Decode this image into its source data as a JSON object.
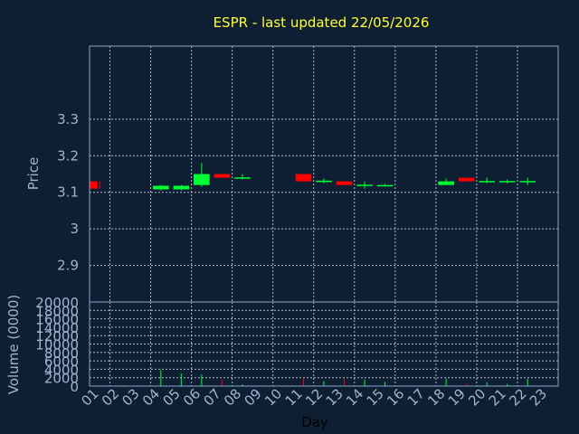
{
  "chart_data": {
    "type": "candlestick",
    "title": "ESPR - last updated 22/05/2026",
    "xlabel": "Day",
    "price_ylabel": "Price",
    "volume_ylabel": "Volume (0000)",
    "x_ticks": [
      "01",
      "02",
      "03",
      "04",
      "05",
      "06",
      "07",
      "08",
      "09",
      "10",
      "11",
      "12",
      "13",
      "14",
      "15",
      "16",
      "17",
      "18",
      "19",
      "20",
      "21",
      "22",
      "23"
    ],
    "price_ylim": [
      2.8,
      3.5
    ],
    "price_ticks": [
      {
        "value": 2.9,
        "label": "2.9"
      },
      {
        "value": 3.0,
        "label": "3"
      },
      {
        "value": 3.1,
        "label": "3.1"
      },
      {
        "value": 3.2,
        "label": "3.2"
      },
      {
        "value": 3.3,
        "label": "3.3"
      }
    ],
    "volume_ylim": [
      0,
      20000
    ],
    "volume_ticks": [
      {
        "value": 0,
        "label": "0"
      },
      {
        "value": 2000,
        "label": "2000"
      },
      {
        "value": 4000,
        "label": "4000"
      },
      {
        "value": 6000,
        "label": "6000"
      },
      {
        "value": 8000,
        "label": "8000"
      },
      {
        "value": 10000,
        "label": "10000"
      },
      {
        "value": 12000,
        "label": "12000"
      },
      {
        "value": 14000,
        "label": "14000"
      },
      {
        "value": 16000,
        "label": "16000"
      },
      {
        "value": 18000,
        "label": "18000"
      },
      {
        "value": 20000,
        "label": "20000"
      }
    ],
    "grid": true,
    "colors": {
      "up": "#00ff33",
      "down": "#ff0000",
      "background": "#0f1f33"
    },
    "candles": [
      {
        "day": 1,
        "open": 3.13,
        "close": 3.11,
        "high": 3.13,
        "low": 3.11
      },
      {
        "day": 4,
        "open": 3.108,
        "close": 3.118,
        "high": 3.12,
        "low": 3.105
      },
      {
        "day": 5,
        "open": 3.108,
        "close": 3.118,
        "high": 3.12,
        "low": 3.105
      },
      {
        "day": 6,
        "open": 3.12,
        "close": 3.15,
        "high": 3.18,
        "low": 3.115
      },
      {
        "day": 7,
        "open": 3.15,
        "close": 3.14,
        "high": 3.15,
        "low": 3.14
      },
      {
        "day": 8,
        "open": 3.138,
        "close": 3.141,
        "high": 3.15,
        "low": 3.135
      },
      {
        "day": 11,
        "open": 3.15,
        "close": 3.13,
        "high": 3.15,
        "low": 3.13
      },
      {
        "day": 12,
        "open": 3.128,
        "close": 3.132,
        "high": 3.138,
        "low": 3.125
      },
      {
        "day": 13,
        "open": 3.13,
        "close": 3.12,
        "high": 3.13,
        "low": 3.12
      },
      {
        "day": 14,
        "open": 3.118,
        "close": 3.121,
        "high": 3.13,
        "low": 3.11
      },
      {
        "day": 15,
        "open": 3.118,
        "close": 3.12,
        "high": 3.123,
        "low": 3.116
      },
      {
        "day": 18,
        "open": 3.12,
        "close": 3.13,
        "high": 3.138,
        "low": 3.12
      },
      {
        "day": 19,
        "open": 3.14,
        "close": 3.13,
        "high": 3.14,
        "low": 3.13
      },
      {
        "day": 20,
        "open": 3.128,
        "close": 3.131,
        "high": 3.14,
        "low": 3.125
      },
      {
        "day": 21,
        "open": 3.128,
        "close": 3.131,
        "high": 3.135,
        "low": 3.125
      },
      {
        "day": 22,
        "open": 3.128,
        "close": 3.131,
        "high": 3.14,
        "low": 3.12
      }
    ],
    "volume": [
      {
        "day": 4,
        "value": 3800,
        "direction": "up"
      },
      {
        "day": 5,
        "value": 3000,
        "direction": "up"
      },
      {
        "day": 6,
        "value": 2800,
        "direction": "up"
      },
      {
        "day": 7,
        "value": 1600,
        "direction": "down"
      },
      {
        "day": 8,
        "value": 400,
        "direction": "up"
      },
      {
        "day": 11,
        "value": 1800,
        "direction": "down"
      },
      {
        "day": 12,
        "value": 1200,
        "direction": "up"
      },
      {
        "day": 13,
        "value": 1800,
        "direction": "down"
      },
      {
        "day": 14,
        "value": 1600,
        "direction": "up"
      },
      {
        "day": 15,
        "value": 1000,
        "direction": "up"
      },
      {
        "day": 18,
        "value": 1800,
        "direction": "up"
      },
      {
        "day": 19,
        "value": 600,
        "direction": "down"
      },
      {
        "day": 20,
        "value": 900,
        "direction": "up"
      },
      {
        "day": 21,
        "value": 500,
        "direction": "up"
      },
      {
        "day": 22,
        "value": 1700,
        "direction": "up"
      }
    ]
  }
}
